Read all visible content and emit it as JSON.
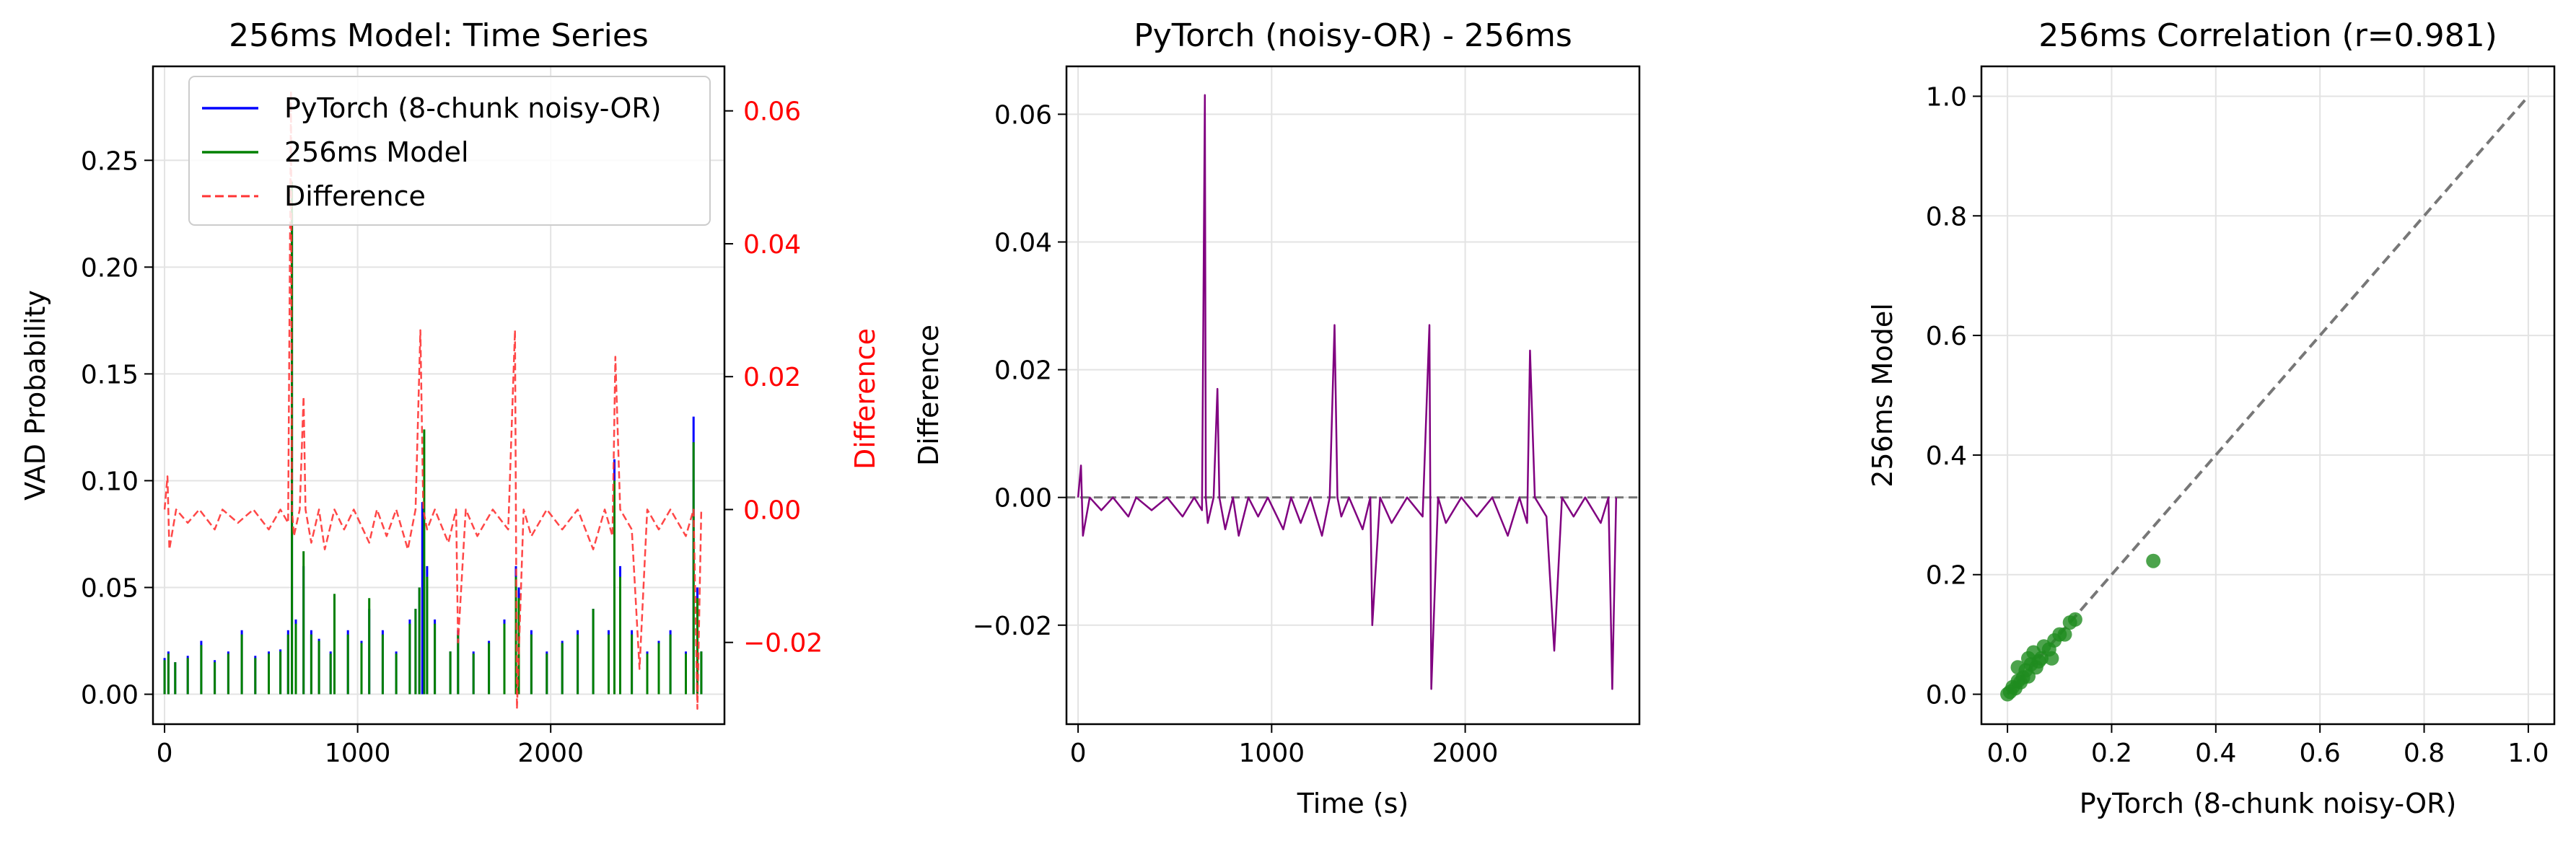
{
  "colors": {
    "pytorch": "#0000ff",
    "model": "#008000",
    "difference": "#ff3333",
    "diff_panel": "#800080",
    "scatter": "#1f8c1f",
    "identity": "#777777",
    "right_axis_text": "#ff0000"
  },
  "chart_data": [
    {
      "type": "line",
      "title": "256ms Model: Time Series",
      "ylabel": "VAD Probability",
      "y2label": "Difference",
      "xlim": [
        -60,
        2900
      ],
      "ylim": [
        -0.014,
        0.294
      ],
      "y2lim": [
        -0.0323,
        0.0667
      ],
      "xticks": [
        0,
        1000,
        2000
      ],
      "yticks": [
        0.0,
        0.05,
        0.1,
        0.15,
        0.2,
        0.25
      ],
      "y2ticks": [
        -0.02,
        0.0,
        0.02,
        0.04,
        0.06
      ],
      "grid": true,
      "legend": "top-right",
      "legend_entries": [
        "PyTorch (8-chunk noisy-OR)",
        "256ms Model",
        "Difference"
      ],
      "series": [
        {
          "name": "PyTorch (8-chunk noisy-OR)",
          "axis": "left",
          "style": "solid",
          "x": [
            0,
            20,
            55,
            120,
            190,
            260,
            330,
            400,
            470,
            540,
            600,
            640,
            660,
            680,
            720,
            760,
            800,
            860,
            880,
            950,
            1020,
            1060,
            1130,
            1200,
            1270,
            1300,
            1320,
            1335,
            1360,
            1400,
            1480,
            1520,
            1600,
            1680,
            1760,
            1820,
            1835,
            1900,
            1980,
            2060,
            2140,
            2220,
            2300,
            2330,
            2360,
            2420,
            2500,
            2560,
            2620,
            2700,
            2740,
            2760,
            2780
          ],
          "y": [
            0.017,
            0.02,
            0.015,
            0.018,
            0.025,
            0.016,
            0.02,
            0.03,
            0.018,
            0.02,
            0.021,
            0.03,
            0.225,
            0.035,
            0.06,
            0.03,
            0.026,
            0.02,
            0.04,
            0.03,
            0.025,
            0.04,
            0.03,
            0.02,
            0.035,
            0.04,
            0.05,
            0.09,
            0.06,
            0.035,
            0.02,
            0.03,
            0.02,
            0.025,
            0.035,
            0.06,
            0.05,
            0.03,
            0.02,
            0.025,
            0.03,
            0.04,
            0.03,
            0.11,
            0.06,
            0.03,
            0.02,
            0.025,
            0.03,
            0.02,
            0.13,
            0.05,
            0.02
          ]
        },
        {
          "name": "256ms Model",
          "axis": "left",
          "style": "solid",
          "x": [
            0,
            20,
            55,
            120,
            190,
            260,
            330,
            400,
            470,
            540,
            600,
            640,
            660,
            680,
            720,
            760,
            800,
            860,
            880,
            950,
            1020,
            1060,
            1130,
            1200,
            1270,
            1300,
            1320,
            1345,
            1360,
            1400,
            1480,
            1520,
            1600,
            1680,
            1760,
            1820,
            1835,
            1900,
            1980,
            2060,
            2140,
            2220,
            2300,
            2330,
            2360,
            2420,
            2500,
            2560,
            2620,
            2700,
            2740,
            2760,
            2780
          ],
          "y": [
            0.016,
            0.019,
            0.015,
            0.017,
            0.023,
            0.015,
            0.019,
            0.028,
            0.017,
            0.019,
            0.02,
            0.028,
            0.24,
            0.033,
            0.067,
            0.028,
            0.025,
            0.019,
            0.047,
            0.028,
            0.024,
            0.045,
            0.028,
            0.019,
            0.033,
            0.04,
            0.05,
            0.124,
            0.055,
            0.033,
            0.02,
            0.028,
            0.019,
            0.024,
            0.033,
            0.055,
            0.045,
            0.028,
            0.019,
            0.024,
            0.028,
            0.04,
            0.028,
            0.1,
            0.055,
            0.028,
            0.019,
            0.024,
            0.028,
            0.019,
            0.118,
            0.045,
            0.02
          ]
        },
        {
          "name": "Difference",
          "axis": "right",
          "style": "dashed",
          "x": [
            0,
            15,
            25,
            60,
            120,
            180,
            260,
            300,
            380,
            460,
            540,
            600,
            640,
            655,
            660,
            670,
            700,
            720,
            730,
            760,
            800,
            830,
            880,
            930,
            980,
            1060,
            1100,
            1150,
            1200,
            1260,
            1300,
            1325,
            1340,
            1360,
            1400,
            1470,
            1510,
            1520,
            1560,
            1620,
            1700,
            1780,
            1815,
            1825,
            1860,
            1900,
            1980,
            2060,
            2140,
            2220,
            2280,
            2320,
            2335,
            2360,
            2420,
            2460,
            2500,
            2560,
            2620,
            2700,
            2740,
            2760,
            2780
          ],
          "y": [
            0.0,
            0.005,
            -0.006,
            0.0,
            -0.002,
            0.0,
            -0.003,
            0.0,
            -0.002,
            0.0,
            -0.003,
            0.0,
            -0.002,
            0.063,
            0.0,
            -0.004,
            0.0,
            0.017,
            0.0,
            -0.005,
            0.0,
            -0.006,
            0.0,
            -0.003,
            0.0,
            -0.005,
            0.0,
            -0.004,
            0.0,
            -0.006,
            0.0,
            0.027,
            0.0,
            -0.003,
            0.0,
            -0.005,
            0.0,
            -0.02,
            0.0,
            -0.004,
            0.0,
            -0.003,
            0.027,
            -0.03,
            0.0,
            -0.004,
            0.0,
            -0.003,
            0.0,
            -0.006,
            0.0,
            -0.004,
            0.023,
            0.0,
            -0.003,
            -0.024,
            0.0,
            -0.003,
            0.0,
            -0.004,
            0.0,
            -0.03,
            0.0
          ]
        }
      ]
    },
    {
      "type": "line",
      "title": "PyTorch (noisy-OR) - 256ms",
      "xlabel": "Time (s)",
      "ylabel": "Difference",
      "xlim": [
        -60,
        2900
      ],
      "ylim": [
        -0.0355,
        0.0675
      ],
      "xticks": [
        0,
        1000,
        2000
      ],
      "yticks": [
        -0.02,
        0.0,
        0.02,
        0.04,
        0.06
      ],
      "grid": true,
      "reference_line": {
        "y": 0.0,
        "style": "dashed"
      },
      "series": [
        {
          "name": "",
          "style": "solid",
          "x": [
            0,
            15,
            25,
            60,
            120,
            180,
            260,
            300,
            380,
            460,
            540,
            600,
            640,
            655,
            660,
            670,
            700,
            720,
            730,
            760,
            800,
            830,
            880,
            930,
            980,
            1060,
            1100,
            1150,
            1200,
            1260,
            1300,
            1325,
            1340,
            1360,
            1400,
            1470,
            1510,
            1520,
            1560,
            1620,
            1700,
            1780,
            1815,
            1825,
            1860,
            1900,
            1980,
            2060,
            2140,
            2220,
            2280,
            2320,
            2335,
            2360,
            2420,
            2460,
            2500,
            2560,
            2620,
            2700,
            2740,
            2760,
            2780
          ],
          "y": [
            0.0,
            0.005,
            -0.006,
            0.0,
            -0.002,
            0.0,
            -0.003,
            0.0,
            -0.002,
            0.0,
            -0.003,
            0.0,
            -0.002,
            0.063,
            0.0,
            -0.004,
            0.0,
            0.017,
            0.0,
            -0.005,
            0.0,
            -0.006,
            0.0,
            -0.003,
            0.0,
            -0.005,
            0.0,
            -0.004,
            0.0,
            -0.006,
            0.0,
            0.027,
            0.0,
            -0.003,
            0.0,
            -0.005,
            0.0,
            -0.02,
            0.0,
            -0.004,
            0.0,
            -0.003,
            0.027,
            -0.03,
            0.0,
            -0.004,
            0.0,
            -0.003,
            0.0,
            -0.006,
            0.0,
            -0.004,
            0.023,
            0.0,
            -0.003,
            -0.024,
            0.0,
            -0.003,
            0.0,
            -0.004,
            0.0,
            -0.03,
            0.0
          ]
        }
      ]
    },
    {
      "type": "scatter",
      "title": "256ms Correlation (r=0.981)",
      "xlabel": "PyTorch (8-chunk noisy-OR)",
      "ylabel": "256ms Model",
      "xlim": [
        -0.05,
        1.05
      ],
      "ylim": [
        -0.05,
        1.05
      ],
      "xticks": [
        0.0,
        0.2,
        0.4,
        0.6,
        0.8,
        1.0
      ],
      "yticks": [
        0.0,
        0.2,
        0.4,
        0.6,
        0.8,
        1.0
      ],
      "grid": true,
      "identity_line": {
        "from": [
          0,
          0
        ],
        "to": [
          1,
          1
        ],
        "style": "dashed"
      },
      "points": [
        [
          0.0,
          0.0
        ],
        [
          0.005,
          0.004
        ],
        [
          0.01,
          0.012
        ],
        [
          0.015,
          0.01
        ],
        [
          0.02,
          0.022
        ],
        [
          0.025,
          0.02
        ],
        [
          0.03,
          0.028
        ],
        [
          0.035,
          0.04
        ],
        [
          0.04,
          0.03
        ],
        [
          0.045,
          0.05
        ],
        [
          0.05,
          0.07
        ],
        [
          0.055,
          0.045
        ],
        [
          0.06,
          0.055
        ],
        [
          0.065,
          0.06
        ],
        [
          0.07,
          0.08
        ],
        [
          0.08,
          0.075
        ],
        [
          0.085,
          0.06
        ],
        [
          0.09,
          0.09
        ],
        [
          0.1,
          0.1
        ],
        [
          0.11,
          0.1
        ],
        [
          0.12,
          0.12
        ],
        [
          0.13,
          0.125
        ],
        [
          0.02,
          0.045
        ],
        [
          0.04,
          0.06
        ],
        [
          0.28,
          0.223
        ]
      ]
    }
  ]
}
